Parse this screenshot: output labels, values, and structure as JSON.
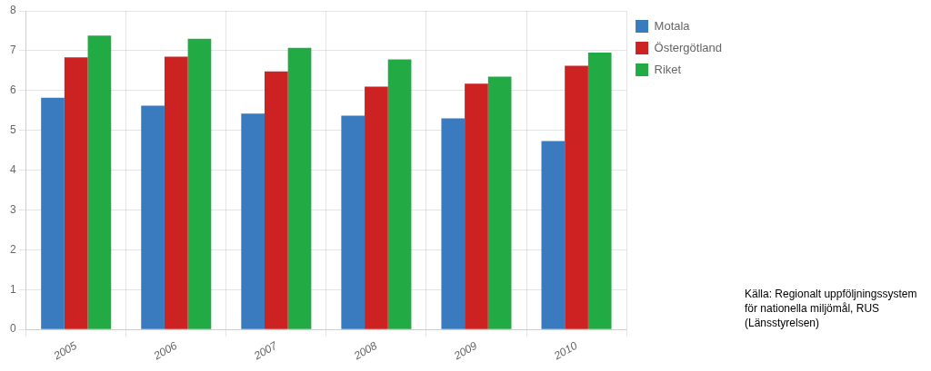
{
  "chart_data": {
    "type": "bar",
    "categories": [
      "2005",
      "2006",
      "2007",
      "2008",
      "2009",
      "2010"
    ],
    "series": [
      {
        "name": "Motala",
        "color": "#3a7abf",
        "values": [
          5.82,
          5.62,
          5.42,
          5.37,
          5.3,
          4.73
        ]
      },
      {
        "name": "Östergötland",
        "color": "#cc2222",
        "values": [
          6.83,
          6.85,
          6.48,
          6.1,
          6.17,
          6.62
        ]
      },
      {
        "name": "Riket",
        "color": "#22aa44",
        "values": [
          7.38,
          7.3,
          7.07,
          6.78,
          6.35,
          6.95
        ]
      }
    ],
    "ylim": [
      0,
      8
    ],
    "yticks": [
      0,
      1,
      2,
      3,
      4,
      5,
      6,
      7,
      8
    ],
    "grid": true,
    "legend": "upper right",
    "annotation": "Källa: Regionalt uppföljningssystem\nför nationella miljömål, RUS\n(Länsstyrelsen)"
  }
}
